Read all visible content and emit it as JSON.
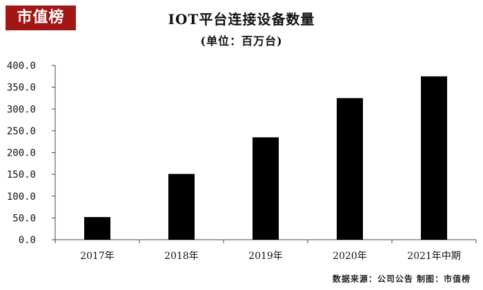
{
  "logo": {
    "text": "市值榜",
    "bg_color": "#a31616"
  },
  "chart_data": {
    "type": "bar",
    "title": "IOT平台连接设备数量",
    "subtitle": "(单位：百万台)",
    "xlabel": "",
    "ylabel": "",
    "categories": [
      "2017年",
      "2018年",
      "2019年",
      "2020年",
      "2021年中期"
    ],
    "values": [
      52,
      151,
      235,
      325,
      375
    ],
    "ylim": [
      0,
      400
    ],
    "yticks": [
      0,
      50,
      100,
      150,
      200,
      250,
      300,
      350,
      400
    ],
    "ytick_labels": [
      "0.0",
      "50.0",
      "100.0",
      "150.0",
      "200.0",
      "250.0",
      "300.0",
      "350.0",
      "400.0"
    ],
    "grid": false,
    "legend": "none",
    "bar_color": "#000000"
  },
  "footer": {
    "source": "数据来源：公司公告  制图：市值榜"
  }
}
